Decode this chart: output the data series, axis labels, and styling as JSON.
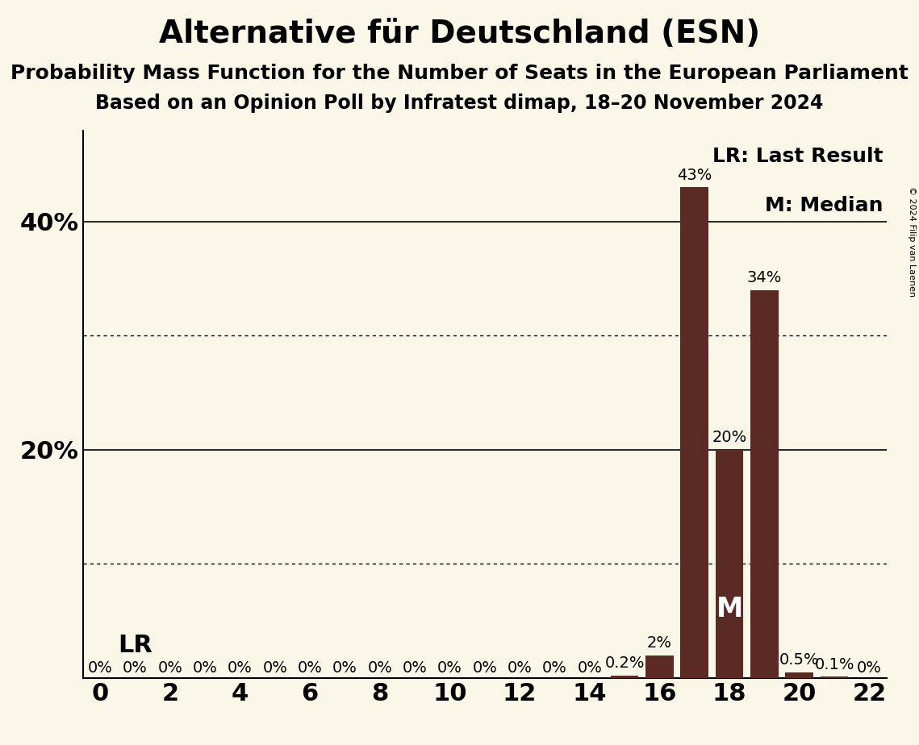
{
  "title": "Alternative für Deutschland (ESN)",
  "subtitle1": "Probability Mass Function for the Number of Seats in the European Parliament",
  "subtitle2": "Based on an Opinion Poll by Infratest dimap, 18–20 November 2024",
  "copyright": "© 2024 Filip van Laenen",
  "background_color": "#faf6e8",
  "bar_color": "#5c2a24",
  "seats": [
    0,
    1,
    2,
    3,
    4,
    5,
    6,
    7,
    8,
    9,
    10,
    11,
    12,
    13,
    14,
    15,
    16,
    17,
    18,
    19,
    20,
    21,
    22
  ],
  "probabilities": [
    0.0,
    0.0,
    0.0,
    0.0,
    0.0,
    0.0,
    0.0,
    0.0,
    0.0,
    0.0,
    0.0,
    0.0,
    0.0,
    0.0,
    0.0,
    0.002,
    0.02,
    0.43,
    0.2,
    0.34,
    0.005,
    0.001,
    0.0
  ],
  "bar_labels": [
    "0%",
    "0%",
    "0%",
    "0%",
    "0%",
    "0%",
    "0%",
    "0%",
    "0%",
    "0%",
    "0%",
    "0%",
    "0%",
    "0%",
    "0%",
    "0.2%",
    "2%",
    "43%",
    "20%",
    "34%",
    "0.5%",
    "0.1%",
    "0%"
  ],
  "last_result_seat": 1,
  "median_seat": 18,
  "xlim": [
    -0.5,
    22.5
  ],
  "ylim": [
    0,
    0.48
  ],
  "yticks": [
    0.0,
    0.1,
    0.2,
    0.3,
    0.4
  ],
  "ytick_labels_show": [
    false,
    false,
    true,
    false,
    true
  ],
  "solid_yticks": [
    0.2,
    0.4
  ],
  "dotted_yticks": [
    0.1,
    0.3
  ],
  "xticks": [
    0,
    2,
    4,
    6,
    8,
    10,
    12,
    14,
    16,
    18,
    20,
    22
  ],
  "legend_text": [
    "LR: Last Result",
    "M: Median"
  ],
  "lr_label": "LR",
  "m_label": "M",
  "title_fontsize": 28,
  "subtitle_fontsize": 18,
  "axis_fontsize": 22,
  "bar_label_fontsize": 14,
  "legend_fontsize": 18
}
